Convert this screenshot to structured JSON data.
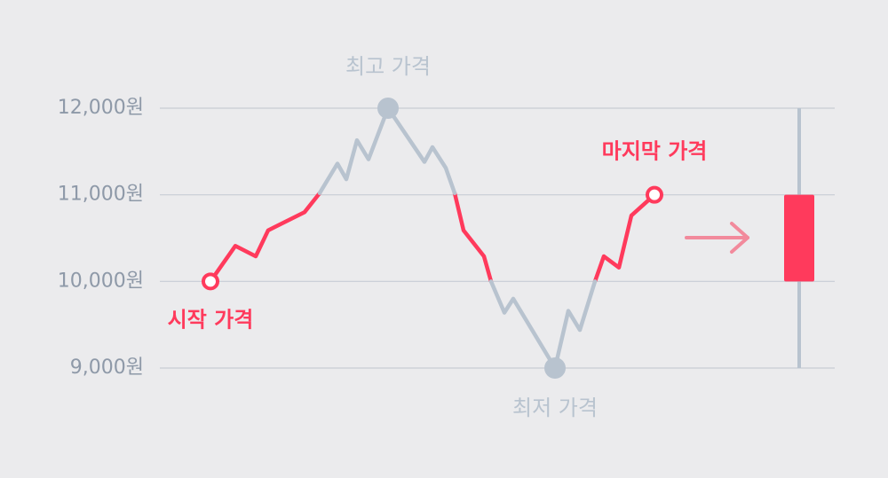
{
  "chart_data": {
    "type": "line",
    "x": [
      11.4,
      17,
      21.6,
      24.4,
      32.6,
      36,
      40,
      42,
      44.4,
      47,
      51.4,
      59.6,
      61.4,
      64.4,
      66.4,
      68.4,
      73,
      74.6,
      77.6,
      79.6,
      89,
      92,
      94.6,
      98,
      100,
      103.4,
      106.2,
      111.4
    ],
    "series": [
      {
        "color": "#ff3a5c",
        "values": [
          10000,
          10410,
          10290,
          10590,
          10800,
          11020,
          null,
          null,
          null,
          null,
          null,
          null,
          null,
          null,
          11020,
          10590,
          10290,
          10000,
          null,
          null,
          null,
          null,
          null,
          10000,
          10290,
          10160,
          10760,
          11000
        ]
      },
      {
        "color": "#b8c3cf",
        "values": [
          null,
          null,
          null,
          null,
          null,
          11020,
          11360,
          11180,
          11630,
          11410,
          12000,
          11380,
          11550,
          11310,
          11020,
          null,
          null,
          10000,
          9640,
          9800,
          9000,
          9660,
          9440,
          10000,
          null,
          null,
          null,
          null
        ]
      }
    ],
    "annotations": [
      "시작 가격",
      "최고 가격",
      "최저 가격",
      "마지막 가격"
    ],
    "candlestick": {
      "x": 144,
      "open": 10000,
      "close": 11000,
      "high": 12000,
      "low": 9000,
      "color": "#ff3a5c",
      "wick_color": "#b8c3cf"
    },
    "xlim": [
      0,
      152
    ],
    "ylim": [
      9000,
      12000
    ],
    "yticks": [
      {
        "value": 9000,
        "label": "9,000원"
      },
      {
        "value": 10000,
        "label": "10,000원"
      },
      {
        "value": 11000,
        "label": "11,000원"
      },
      {
        "value": 12000,
        "label": "12,000원"
      }
    ],
    "grid": true
  }
}
